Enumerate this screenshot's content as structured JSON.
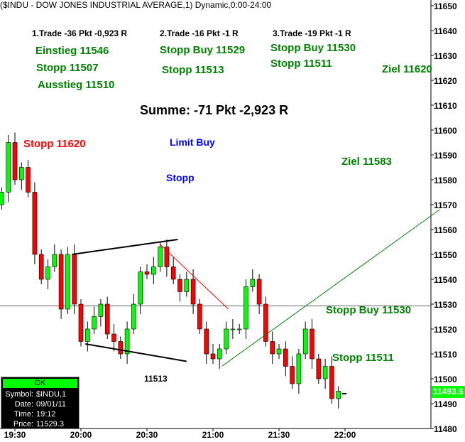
{
  "chart_data": {
    "type": "candlestick",
    "title": "($INDU - DOW JONES INDUSTRIAL AVERAGE,1) Dynamic,0:00-24:00",
    "ylim": [
      11480,
      11650
    ],
    "y_ticks": [
      11480,
      11490,
      11500,
      11510,
      11520,
      11530,
      11540,
      11550,
      11560,
      11570,
      11580,
      11590,
      11600,
      11610,
      11620,
      11630,
      11640,
      11650
    ],
    "x_ticks": [
      "19:30",
      "20:00",
      "20:30",
      "21:00",
      "21:30",
      "22:00"
    ],
    "bar_minutes": 3,
    "start_time": "19:24",
    "closes": [
      11575,
      11595,
      11580,
      11585,
      11575,
      11550,
      11540,
      11545,
      11550,
      11528,
      11550,
      11530,
      11515,
      11520,
      11525,
      11530,
      11518,
      11515,
      11510,
      11520,
      11530,
      11543,
      11542,
      11545,
      11553,
      11545,
      11540,
      11535,
      11540,
      11530,
      11520,
      11510,
      11508,
      11512,
      11520,
      11520,
      11520,
      11537,
      11540,
      11530,
      11515,
      11510,
      11512,
      11505,
      11498,
      11510,
      11520,
      11508,
      11500,
      11505,
      11492,
      11495
    ],
    "current_price": "11493.6",
    "horizontal_line": 11529.3,
    "trendlines": [
      {
        "color": "#000000",
        "from": [
          "19:56",
          11550
        ],
        "to": [
          "20:44",
          11556
        ]
      },
      {
        "color": "#000000",
        "from": [
          "20:02",
          11514
        ],
        "to": [
          "20:48",
          11507
        ]
      },
      {
        "color": "#ff0000",
        "from": [
          "20:36",
          11554
        ],
        "to": [
          "21:07",
          11528
        ]
      },
      {
        "color": "#008000",
        "from": [
          "21:04",
          11505
        ],
        "to": [
          "22:43",
          11568
        ]
      }
    ]
  },
  "annotations": {
    "t1": "1.Trade -36 Pkt -0,923 R",
    "t2": "2.Trade -16 Pkt -1 R",
    "t3": "3.Trade -19 Pkt -1 R",
    "einstieg": "Einstieg 11546",
    "stopp1": "Stopp 11507",
    "ausstieg": "Ausstieg 11510",
    "sb1": "Stopp Buy 11529",
    "stopp2": "Stopp 11513",
    "sb2": "Stopp Buy 11530",
    "stopp3": "Stopp 11511",
    "ziel1": "Ziel 11620",
    "summe": "Summe: -71 Pkt -2,923 R",
    "stopp_red": "Stopp 11620",
    "limit_buy": "Limit Buy",
    "stopp_blue": "Stopp",
    "ziel2": "Ziel 11583",
    "sb3": "Stopp Buy 11530",
    "stopp4": "Stopp 11511",
    "label_11513": "11513"
  },
  "info": {
    "status": "OK",
    "symbol_label": "Symbol:",
    "symbol": "$INDU,1",
    "date_label": "Date:",
    "date": "09/01/11",
    "time_label": "Time:",
    "time": "19:12",
    "price_label": "Price:",
    "price": "11529.3"
  }
}
